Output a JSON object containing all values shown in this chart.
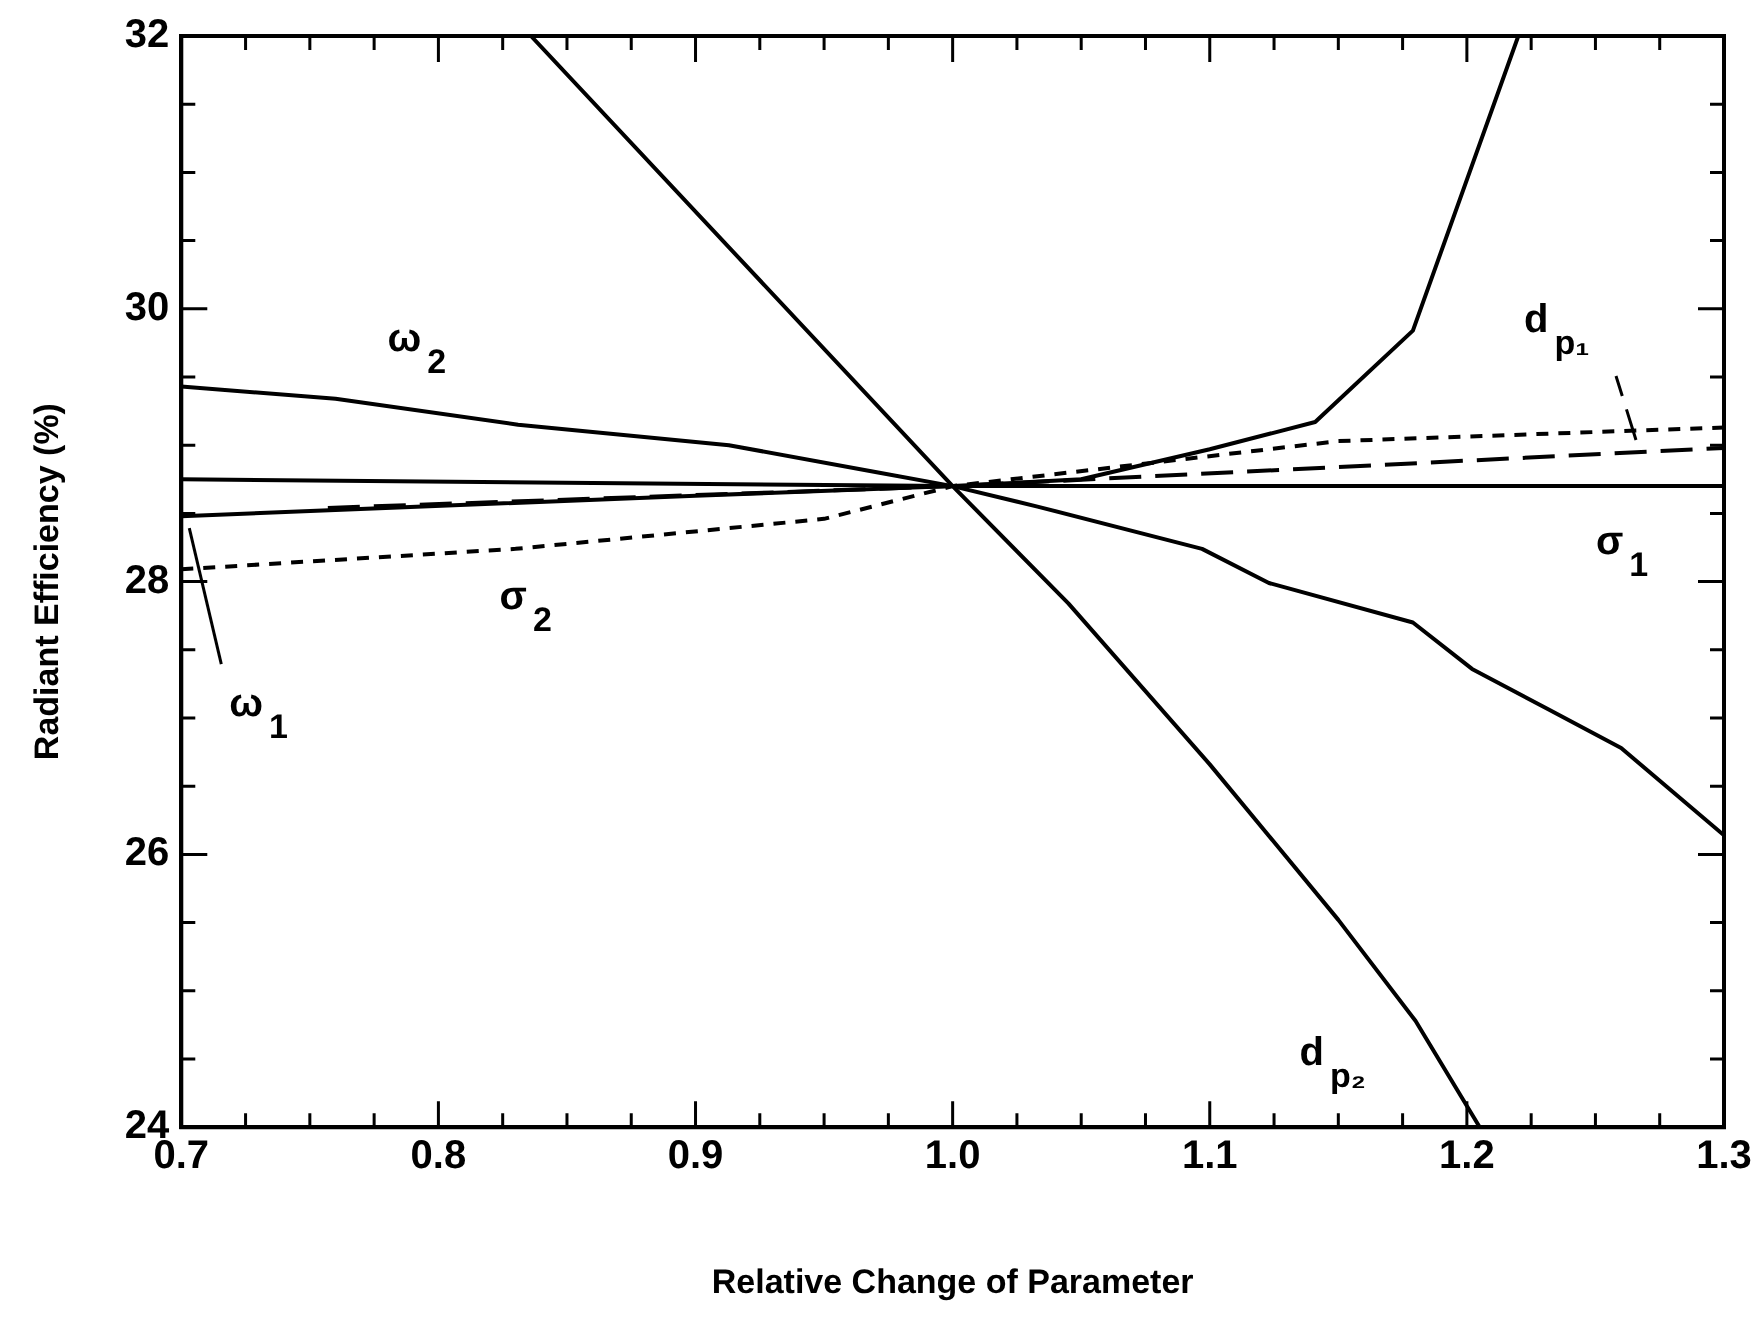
{
  "chart_data": {
    "type": "line",
    "xlabel": "Relative Change of Parameter",
    "ylabel": "Radiant Efficiency (%)",
    "xlim": [
      0.7,
      1.3
    ],
    "ylim": [
      24,
      32
    ],
    "xticks": [
      {
        "value": 0.7,
        "label": "0.7"
      },
      {
        "value": 0.725,
        "label": null
      },
      {
        "value": 0.75,
        "label": null
      },
      {
        "value": 0.775,
        "label": null
      },
      {
        "value": 0.8,
        "label": "0.8"
      },
      {
        "value": 0.825,
        "label": null
      },
      {
        "value": 0.85,
        "label": null
      },
      {
        "value": 0.875,
        "label": null
      },
      {
        "value": 0.9,
        "label": "0.9"
      },
      {
        "value": 0.925,
        "label": null
      },
      {
        "value": 0.95,
        "label": null
      },
      {
        "value": 0.975,
        "label": null
      },
      {
        "value": 1,
        "label": "1.0"
      },
      {
        "value": 1.025,
        "label": null
      },
      {
        "value": 1.05,
        "label": null
      },
      {
        "value": 1.075,
        "label": null
      },
      {
        "value": 1.1,
        "label": "1.1"
      },
      {
        "value": 1.125,
        "label": null
      },
      {
        "value": 1.15,
        "label": null
      },
      {
        "value": 1.175,
        "label": null
      },
      {
        "value": 1.2,
        "label": "1.2"
      },
      {
        "value": 1.225,
        "label": null
      },
      {
        "value": 1.25,
        "label": null
      },
      {
        "value": 1.275,
        "label": null
      },
      {
        "value": 1.3,
        "label": "1.3"
      }
    ],
    "yticks": [
      24,
      {
        "value": 24.5,
        "label": null
      },
      {
        "value": 25,
        "label": null
      },
      {
        "value": 25.5,
        "label": null
      },
      26,
      {
        "value": 26.5,
        "label": null
      },
      {
        "value": 27,
        "label": null
      },
      {
        "value": 27.5,
        "label": null
      },
      28,
      {
        "value": 28.5,
        "label": null
      },
      {
        "value": 29,
        "label": null
      },
      {
        "value": 29.5,
        "label": null
      },
      30,
      {
        "value": 30.5,
        "label": null
      },
      {
        "value": 31,
        "label": null
      },
      {
        "value": 31.5,
        "label": null
      },
      32
    ],
    "grid": false,
    "legend": false,
    "marker": "none",
    "line_style": "solid",
    "series": [
      {
        "name": "d$_{p₂}$",
        "color": "#000000",
        "x": [
          0.836,
          1.0,
          1.045,
          1.1,
          1.15,
          1.18,
          1.205
        ],
        "values": [
          32,
          28.7,
          27.84,
          26.66,
          25.52,
          24.78,
          24
        ]
      },
      {
        "name": "ω$_{2}$",
        "color": "#000000",
        "x": [
          0.7,
          0.76,
          0.831,
          0.913,
          0.971,
          1.0,
          1.033,
          1.097,
          1.123,
          1.179,
          1.202,
          1.232,
          1.26,
          1.3
        ],
        "values": [
          29.43,
          29.34,
          29.15,
          29.0,
          28.8,
          28.7,
          28.55,
          28.24,
          27.99,
          27.7,
          27.36,
          27.06,
          26.78,
          26.14
        ]
      },
      {
        "name": "ω$_{1}$",
        "color": "#000000",
        "x": [
          0.7,
          0.9,
          1.0,
          1.05,
          1.1,
          1.141,
          1.179,
          1.22
        ],
        "values": [
          28.48,
          28.63,
          28.7,
          28.75,
          28.97,
          29.17,
          29.84,
          32
        ]
      },
      {
        "name": "σ$_{1}$",
        "color": "#000000",
        "x": [
          0.7,
          1.0,
          1.3
        ],
        "values": [
          28.75,
          28.7,
          28.7
        ]
      },
      {
        "name": "d$_{p₁}$",
        "color": "#000000",
        "line_style": "dashed",
        "x": [
          0.757,
          1.0,
          1.3
        ],
        "values": [
          28.54,
          28.7,
          28.98
        ]
      },
      {
        "name": "σ$_{2}$",
        "color": "#000000",
        "line_style": "dotted",
        "x": [
          0.7,
          0.83,
          0.95,
          1.0,
          1.15,
          1.3
        ],
        "values": [
          28.09,
          28.24,
          28.46,
          28.7,
          29.03,
          29.13
        ]
      }
    ]
  }
}
